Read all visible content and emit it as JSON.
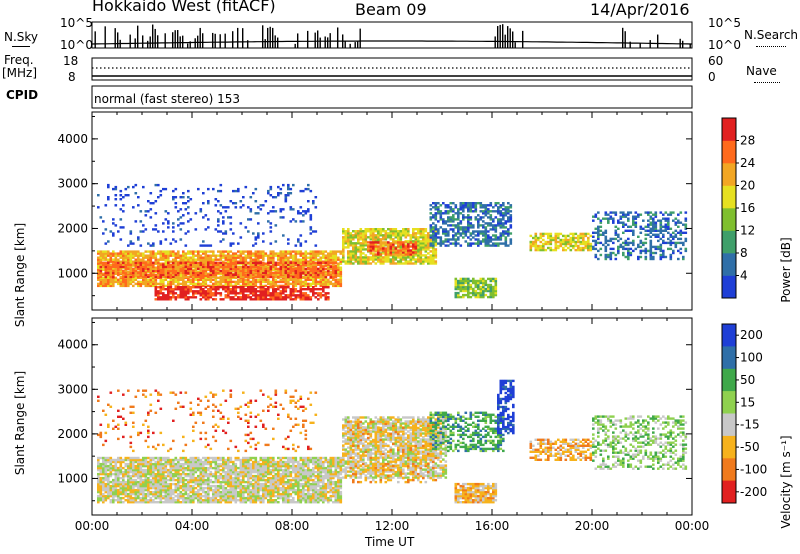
{
  "header": {
    "radar": "Hokkaido West (fitACF)",
    "beam": "Beam 09",
    "date": "14/Apr/2016"
  },
  "panels": {
    "nsky_label": "N.Sky",
    "nsky_ticks": [
      "10^5",
      "10^0"
    ],
    "nsky_ticks_right": [
      "10^5",
      "10^0"
    ],
    "nsearch_label": "N.Search",
    "freq_label_1": "Freq.",
    "freq_label_2": "[MHz]",
    "freq_ticks": [
      "18",
      "8"
    ],
    "nave_ticks": [
      "60",
      "0"
    ],
    "nave_label": "Nave",
    "cpid_label": "CPID",
    "cpid_text": "normal (fast stereo) 153"
  },
  "colors": {
    "power": [
      "#1f3fd6",
      "#2f6fa8",
      "#3f9f6a",
      "#7fbf2f",
      "#e6e020",
      "#f2a623",
      "#ff6a1c",
      "#e12020"
    ],
    "velocity": [
      "#1f3fd6",
      "#2f6fa8",
      "#3fa84a",
      "#8fd14f",
      "#c8c8c8",
      "#f6b21c",
      "#f07a1c",
      "#e12020"
    ]
  },
  "chart_data": [
    {
      "type": "heatmap",
      "ylabel": "Slant Range [km]",
      "xlabel": "",
      "x_ticks": [
        "00:00",
        "04:00",
        "08:00",
        "12:00",
        "16:00",
        "20:00",
        "00:00"
      ],
      "y_ticks": [
        "1000",
        "2000",
        "3000",
        "4000"
      ],
      "ylim": [
        180,
        4600
      ],
      "colorbar": {
        "label": "Power [dB]",
        "ticks": [
          "4",
          "8",
          "12",
          "16",
          "20",
          "24",
          "28"
        ],
        "range": [
          0,
          32
        ]
      },
      "regions": [
        {
          "t0": 0.2,
          "t1": 10.0,
          "r0": 700,
          "r1": 1500,
          "level": 5,
          "density": 0.85
        },
        {
          "t0": 0.3,
          "t1": 9.8,
          "r0": 900,
          "r1": 1250,
          "level": 6,
          "density": 0.8
        },
        {
          "t0": 2.5,
          "t1": 9.5,
          "r0": 400,
          "r1": 700,
          "level": 7,
          "density": 0.75
        },
        {
          "t0": 10.0,
          "t1": 13.8,
          "r0": 1200,
          "r1": 2000,
          "level": 4,
          "density": 0.8
        },
        {
          "t0": 11.0,
          "t1": 13.0,
          "r0": 1400,
          "r1": 1700,
          "level": 6,
          "density": 0.7
        },
        {
          "t0": 13.5,
          "t1": 16.8,
          "r0": 1600,
          "r1": 2600,
          "level": 1,
          "density": 0.6
        },
        {
          "t0": 14.5,
          "t1": 16.2,
          "r0": 450,
          "r1": 900,
          "level": 3,
          "density": 0.8
        },
        {
          "t0": 17.5,
          "t1": 20.0,
          "r0": 1500,
          "r1": 1900,
          "level": 4,
          "density": 0.7
        },
        {
          "t0": 20.0,
          "t1": 23.8,
          "r0": 1300,
          "r1": 2400,
          "level": 1,
          "density": 0.4
        },
        {
          "t0": 0.2,
          "t1": 9.0,
          "r0": 1600,
          "r1": 3000,
          "level": 0,
          "density": 0.12
        }
      ]
    },
    {
      "type": "heatmap",
      "ylabel": "Slant Range [km]",
      "xlabel": "Time UT",
      "x_ticks": [
        "00:00",
        "04:00",
        "08:00",
        "12:00",
        "16:00",
        "20:00",
        "00:00"
      ],
      "y_ticks": [
        "1000",
        "2000",
        "3000",
        "4000"
      ],
      "ylim": [
        180,
        4600
      ],
      "colorbar": {
        "label": "Velocity [m s-1]",
        "ticks": [
          "200",
          "100",
          "50",
          "15",
          "-15",
          "-50",
          "-100",
          "-200"
        ],
        "range": [
          -250,
          250
        ]
      },
      "regions": [
        {
          "t0": 0.2,
          "t1": 10.0,
          "r0": 450,
          "r1": 1500,
          "level": 4,
          "density": 0.85
        },
        {
          "t0": 10.0,
          "t1": 14.2,
          "r0": 1000,
          "r1": 2400,
          "level": 4,
          "density": 0.75
        },
        {
          "t0": 10.2,
          "t1": 13.8,
          "r0": 900,
          "r1": 2300,
          "level": 5,
          "density": 0.3
        },
        {
          "t0": 14.5,
          "t1": 16.2,
          "r0": 450,
          "r1": 900,
          "level": 5,
          "density": 0.85
        },
        {
          "t0": 13.5,
          "t1": 16.5,
          "r0": 1600,
          "r1": 2500,
          "level": 2,
          "density": 0.5
        },
        {
          "t0": 16.2,
          "t1": 16.9,
          "r0": 2000,
          "r1": 3200,
          "level": 0,
          "density": 0.6
        },
        {
          "t0": 17.5,
          "t1": 20.0,
          "r0": 1400,
          "r1": 1900,
          "level": 5,
          "density": 0.6
        },
        {
          "t0": 20.0,
          "t1": 23.8,
          "r0": 1200,
          "r1": 2400,
          "level": 3,
          "density": 0.4
        },
        {
          "t0": 0.2,
          "t1": 9.0,
          "r0": 1600,
          "r1": 3000,
          "level": 6,
          "density": 0.1
        }
      ]
    }
  ]
}
